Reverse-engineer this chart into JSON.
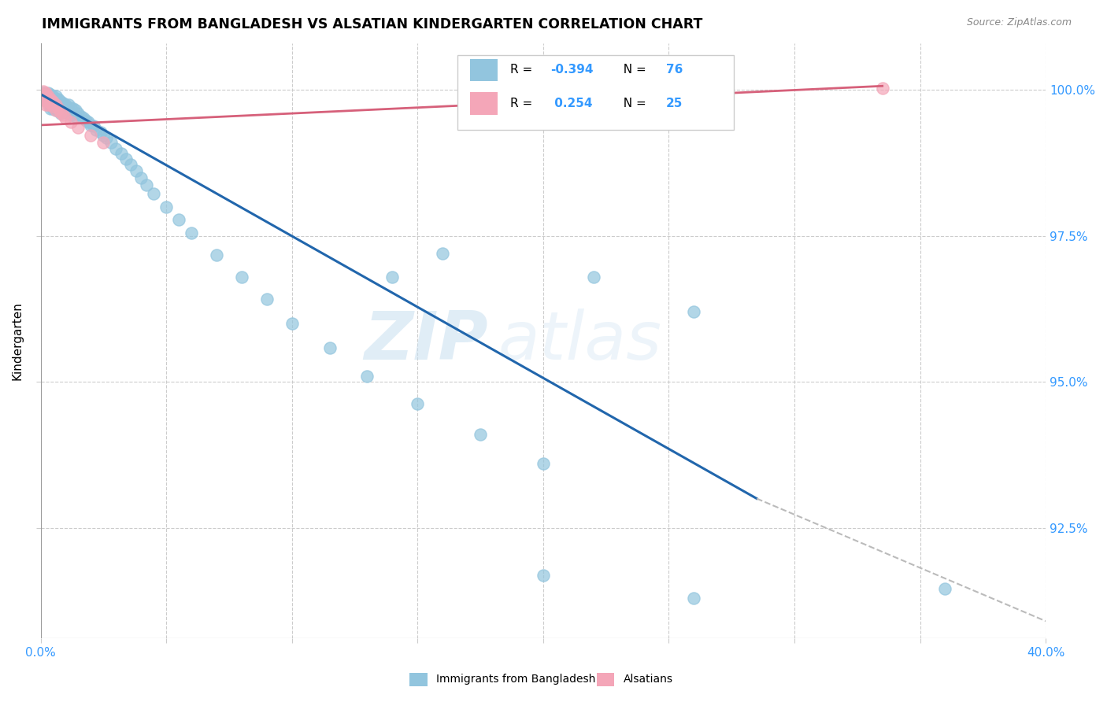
{
  "title": "IMMIGRANTS FROM BANGLADESH VS ALSATIAN KINDERGARTEN CORRELATION CHART",
  "source": "Source: ZipAtlas.com",
  "ylabel": "Kindergarten",
  "ytick_labels": [
    "100.0%",
    "97.5%",
    "95.0%",
    "92.5%"
  ],
  "ytick_values": [
    1.0,
    0.975,
    0.95,
    0.925
  ],
  "xmin": 0.0,
  "xmax": 0.4,
  "ymin": 0.906,
  "ymax": 1.008,
  "color_blue": "#92c5de",
  "color_pink": "#f4a6b8",
  "color_blue_line": "#2166ac",
  "color_pink_line": "#d6607a",
  "color_dashed": "#bbbbbb",
  "watermark_zip": "ZIP",
  "watermark_atlas": "atlas",
  "blue_line_x0": 0.0,
  "blue_line_y0": 0.9993,
  "blue_line_x1": 0.285,
  "blue_line_y1": 0.93,
  "dash_line_x0": 0.285,
  "dash_line_y0": 0.93,
  "dash_line_x1": 0.4,
  "dash_line_y1": 0.909,
  "pink_line_x0": 0.0,
  "pink_line_y0": 0.994,
  "pink_line_x1": 0.335,
  "pink_line_y1": 1.0007,
  "blue_points_x": [
    0.001,
    0.001,
    0.002,
    0.002,
    0.003,
    0.003,
    0.003,
    0.004,
    0.004,
    0.004,
    0.004,
    0.004,
    0.005,
    0.005,
    0.005,
    0.005,
    0.006,
    0.006,
    0.006,
    0.006,
    0.007,
    0.007,
    0.007,
    0.008,
    0.008,
    0.008,
    0.009,
    0.009,
    0.01,
    0.01,
    0.011,
    0.011,
    0.012,
    0.012,
    0.013,
    0.014,
    0.014,
    0.015,
    0.016,
    0.017,
    0.018,
    0.019,
    0.02,
    0.021,
    0.022,
    0.024,
    0.025,
    0.026,
    0.028,
    0.03,
    0.032,
    0.034,
    0.036,
    0.038,
    0.04,
    0.042,
    0.045,
    0.05,
    0.055,
    0.06,
    0.07,
    0.08,
    0.09,
    0.1,
    0.115,
    0.13,
    0.15,
    0.175,
    0.2,
    0.14,
    0.16,
    0.22,
    0.26,
    0.36,
    0.2,
    0.26
  ],
  "blue_points_y": [
    0.9995,
    0.9988,
    0.9992,
    0.9982,
    0.9995,
    0.9988,
    0.998,
    0.9993,
    0.9988,
    0.9982,
    0.9975,
    0.9968,
    0.999,
    0.9985,
    0.9978,
    0.9968,
    0.999,
    0.9984,
    0.9975,
    0.9965,
    0.9985,
    0.9978,
    0.9968,
    0.998,
    0.9972,
    0.996,
    0.9978,
    0.9965,
    0.9975,
    0.9962,
    0.9975,
    0.9962,
    0.997,
    0.9958,
    0.9968,
    0.9965,
    0.9955,
    0.996,
    0.9955,
    0.9952,
    0.9948,
    0.9945,
    0.994,
    0.9938,
    0.9932,
    0.9928,
    0.9922,
    0.9918,
    0.991,
    0.99,
    0.9892,
    0.9882,
    0.9872,
    0.9862,
    0.985,
    0.9838,
    0.9822,
    0.98,
    0.9778,
    0.9755,
    0.9718,
    0.968,
    0.9642,
    0.96,
    0.9558,
    0.951,
    0.9462,
    0.941,
    0.936,
    0.968,
    0.972,
    0.968,
    0.962,
    0.9145,
    0.9168,
    0.913
  ],
  "pink_points_x": [
    0.001,
    0.001,
    0.001,
    0.002,
    0.002,
    0.002,
    0.002,
    0.003,
    0.003,
    0.003,
    0.004,
    0.004,
    0.005,
    0.005,
    0.006,
    0.006,
    0.007,
    0.008,
    0.009,
    0.01,
    0.012,
    0.015,
    0.02,
    0.025,
    0.335
  ],
  "pink_points_y": [
    0.9998,
    0.9992,
    0.9985,
    0.9995,
    0.999,
    0.9982,
    0.9975,
    0.999,
    0.9983,
    0.9975,
    0.9985,
    0.9978,
    0.998,
    0.9972,
    0.9975,
    0.9965,
    0.9968,
    0.9962,
    0.9958,
    0.9952,
    0.9945,
    0.9936,
    0.9922,
    0.991,
    1.0003
  ]
}
